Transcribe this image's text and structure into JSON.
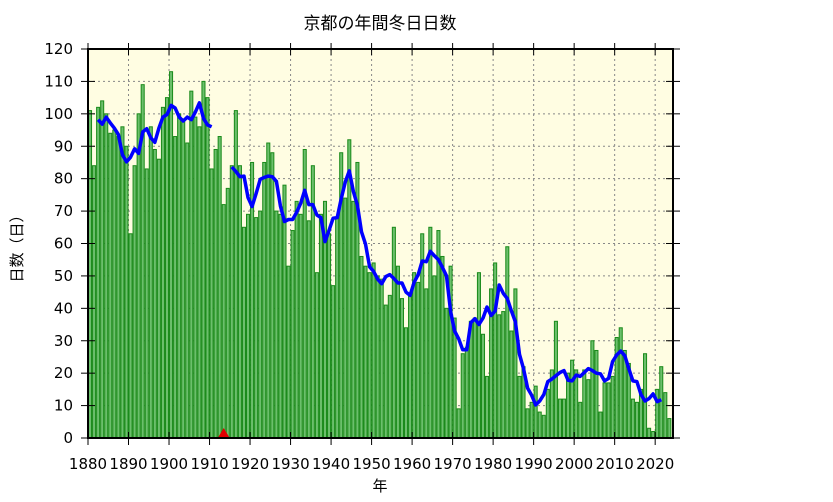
{
  "chart_data": {
    "type": "bar",
    "title": "京都の年間冬日日数",
    "xlabel": "年",
    "ylabel": "日数（日）",
    "xlim": [
      1880,
      2024
    ],
    "ylim": [
      0,
      120
    ],
    "xticks": [
      1880,
      1890,
      1900,
      1910,
      1920,
      1930,
      1940,
      1950,
      1960,
      1970,
      1980,
      1990,
      2000,
      2010,
      2020
    ],
    "yticks": [
      0,
      10,
      20,
      30,
      40,
      50,
      60,
      70,
      80,
      90,
      100,
      110,
      120
    ],
    "grid": true,
    "first_year": 1880,
    "values": [
      101,
      84,
      102,
      104,
      100,
      94,
      95,
      93,
      96,
      90,
      63,
      84,
      100,
      109,
      83,
      96,
      89,
      86,
      102,
      105,
      113,
      93,
      100,
      98,
      91,
      107,
      99,
      96,
      110,
      105,
      83,
      89,
      93,
      72,
      77,
      84,
      101,
      84,
      65,
      69,
      85,
      68,
      70,
      85,
      91,
      88,
      70,
      69,
      78,
      53,
      64,
      73,
      69,
      89,
      67,
      84,
      51,
      69,
      73,
      63,
      47,
      68,
      88,
      74,
      92,
      73,
      85,
      56,
      53,
      51,
      54,
      50,
      49,
      41,
      44,
      65,
      53,
      43,
      34,
      44,
      51,
      48,
      63,
      46,
      65,
      50,
      64,
      56,
      40,
      53,
      37,
      9,
      26,
      28,
      36,
      37,
      51,
      32,
      19,
      46,
      54,
      38,
      39,
      59,
      33,
      46,
      19,
      22,
      9,
      11,
      16,
      8,
      7,
      15,
      21,
      36,
      12,
      12,
      20,
      24,
      21,
      11,
      21,
      18,
      30,
      27,
      8,
      17,
      17,
      19,
      31,
      34,
      27,
      23,
      12,
      11,
      15,
      26,
      3,
      2,
      15,
      22,
      14,
      6
    ],
    "moving_average": {
      "window": 5,
      "color": "#0000ff",
      "break_year": 1913
    },
    "marker": {
      "year": 1913,
      "shape": "triangle",
      "color": "#e00000"
    },
    "colors": {
      "bar_fill": "#6cbf6c",
      "bar_edge": "#1a8a1a",
      "plot_background": "#fffde2",
      "grid": "#888888"
    }
  }
}
